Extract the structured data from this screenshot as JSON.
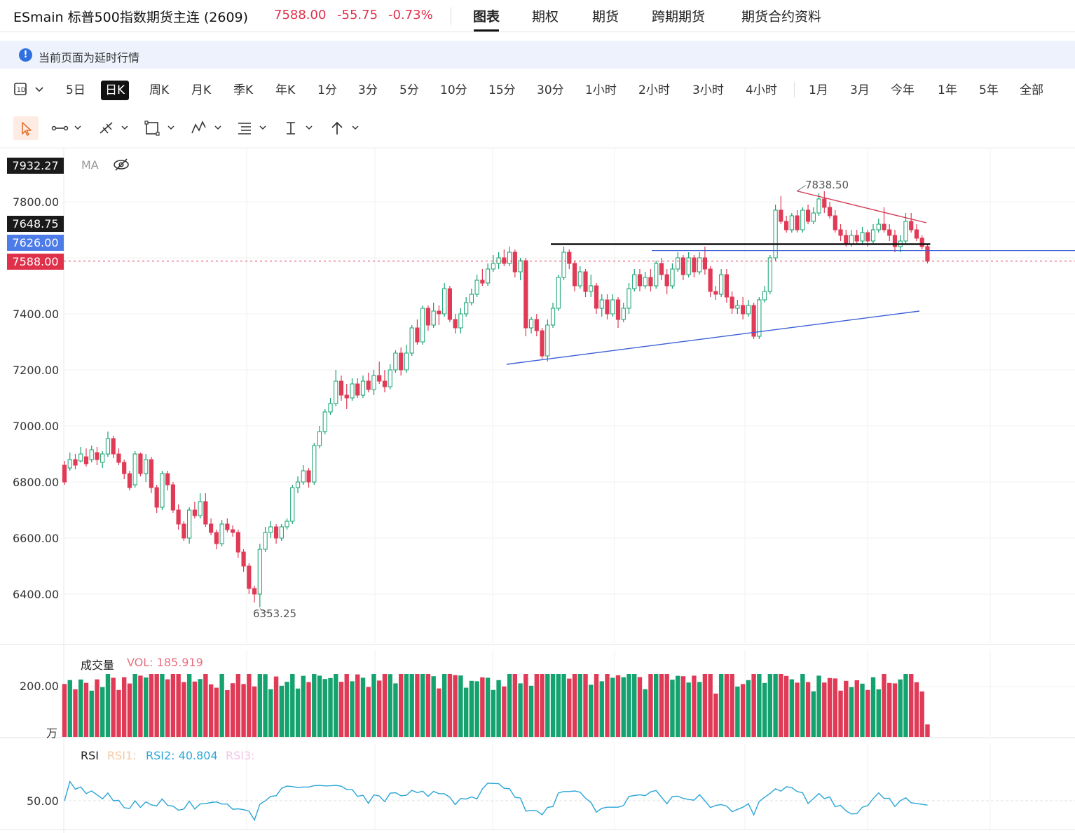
{
  "header": {
    "title": "ESmain 标普500指数期货主连 (2609)",
    "price": "7588.00",
    "change": "-55.75",
    "change_pct": "-0.73%",
    "tabs": [
      {
        "label": "图表",
        "active": true
      },
      {
        "label": "期权",
        "active": false
      },
      {
        "label": "期货",
        "active": false
      },
      {
        "label": "跨期期货",
        "active": false
      },
      {
        "label": "期货合约资料",
        "active": false
      }
    ]
  },
  "notice": {
    "text": "当前页面为延时行情"
  },
  "periods": {
    "items": [
      "5日",
      "日K",
      "周K",
      "月K",
      "季K",
      "年K",
      "1分",
      "3分",
      "5分",
      "10分",
      "15分",
      "30分",
      "1小时",
      "2小时",
      "3小时",
      "4小时"
    ],
    "active": "日K",
    "ranges": [
      "1月",
      "3月",
      "今年",
      "1年",
      "5年",
      "全部"
    ]
  },
  "colors": {
    "up": "#14a26f",
    "down": "#e03a56",
    "resistance": "#d23b55",
    "support": "#3c5fd6",
    "neckline": "#111111",
    "rsi": "#2aa6d6",
    "last_price_badge": "#e0314b",
    "ref_badge": "#4d7be8",
    "hover_badge": "#1a1a1a"
  },
  "price_chart": {
    "indicator_label": "MA",
    "hover_value": "7932.27",
    "y_ticks": [
      "7800.00",
      "7400.00",
      "7200.00",
      "7000.00",
      "6800.00",
      "6600.00",
      "6400.00"
    ],
    "badges": {
      "neckline": "7648.75",
      "reference": "7626.00",
      "last": "7588.00"
    },
    "high_label": "7838.50",
    "low_label": "6353.25",
    "candles": [
      [
        6860,
        6800,
        6875,
        6790
      ],
      [
        6850,
        6880,
        6905,
        6840
      ],
      [
        6880,
        6860,
        6900,
        6845
      ],
      [
        6875,
        6900,
        6925,
        6870
      ],
      [
        6890,
        6865,
        6920,
        6855
      ],
      [
        6880,
        6915,
        6930,
        6870
      ],
      [
        6905,
        6880,
        6925,
        6860
      ],
      [
        6870,
        6900,
        6910,
        6850
      ],
      [
        6900,
        6955,
        6980,
        6890
      ],
      [
        6955,
        6900,
        6965,
        6885
      ],
      [
        6900,
        6870,
        6920,
        6860
      ],
      [
        6870,
        6830,
        6880,
        6810
      ],
      [
        6830,
        6780,
        6840,
        6770
      ],
      [
        6790,
        6900,
        6910,
        6780
      ],
      [
        6900,
        6830,
        6905,
        6820
      ],
      [
        6830,
        6880,
        6900,
        6800
      ],
      [
        6880,
        6780,
        6890,
        6760
      ],
      [
        6780,
        6710,
        6790,
        6690
      ],
      [
        6710,
        6830,
        6840,
        6700
      ],
      [
        6830,
        6790,
        6840,
        6770
      ],
      [
        6790,
        6700,
        6800,
        6690
      ],
      [
        6700,
        6650,
        6720,
        6630
      ],
      [
        6650,
        6600,
        6660,
        6590
      ],
      [
        6600,
        6700,
        6710,
        6580
      ],
      [
        6700,
        6680,
        6730,
        6670
      ],
      [
        6680,
        6730,
        6760,
        6670
      ],
      [
        6730,
        6650,
        6760,
        6640
      ],
      [
        6650,
        6620,
        6670,
        6610
      ],
      [
        6620,
        6580,
        6630,
        6560
      ],
      [
        6580,
        6650,
        6665,
        6570
      ],
      [
        6650,
        6630,
        6670,
        6620
      ],
      [
        6630,
        6620,
        6645,
        6605
      ],
      [
        6620,
        6550,
        6630,
        6530
      ],
      [
        6550,
        6500,
        6560,
        6480
      ],
      [
        6500,
        6420,
        6510,
        6400
      ],
      [
        6420,
        6400,
        6430,
        6370
      ],
      [
        6400,
        6560,
        6580,
        6353
      ],
      [
        6560,
        6620,
        6640,
        6550
      ],
      [
        6620,
        6640,
        6660,
        6600
      ],
      [
        6640,
        6600,
        6650,
        6580
      ],
      [
        6600,
        6640,
        6650,
        6590
      ],
      [
        6640,
        6660,
        6670,
        6630
      ],
      [
        6660,
        6780,
        6790,
        6650
      ],
      [
        6780,
        6800,
        6820,
        6760
      ],
      [
        6800,
        6840,
        6860,
        6790
      ],
      [
        6840,
        6800,
        6850,
        6780
      ],
      [
        6800,
        6930,
        6940,
        6790
      ],
      [
        6930,
        6980,
        7000,
        6920
      ],
      [
        6980,
        7050,
        7060,
        6970
      ],
      [
        7050,
        7080,
        7100,
        7040
      ],
      [
        7080,
        7160,
        7200,
        7070
      ],
      [
        7160,
        7110,
        7180,
        7090
      ],
      [
        7110,
        7100,
        7150,
        7060
      ],
      [
        7100,
        7150,
        7170,
        7090
      ],
      [
        7150,
        7110,
        7170,
        7100
      ],
      [
        7110,
        7160,
        7180,
        7100
      ],
      [
        7160,
        7130,
        7190,
        7120
      ],
      [
        7130,
        7180,
        7200,
        7110
      ],
      [
        7180,
        7160,
        7230,
        7150
      ],
      [
        7160,
        7140,
        7200,
        7120
      ],
      [
        7140,
        7200,
        7220,
        7130
      ],
      [
        7200,
        7260,
        7270,
        7190
      ],
      [
        7260,
        7200,
        7280,
        7180
      ],
      [
        7200,
        7260,
        7290,
        7190
      ],
      [
        7260,
        7350,
        7360,
        7250
      ],
      [
        7350,
        7300,
        7380,
        7290
      ],
      [
        7300,
        7420,
        7430,
        7290
      ],
      [
        7420,
        7360,
        7430,
        7340
      ],
      [
        7360,
        7410,
        7440,
        7350
      ],
      [
        7410,
        7400,
        7430,
        7360
      ],
      [
        7400,
        7490,
        7510,
        7390
      ],
      [
        7490,
        7380,
        7500,
        7370
      ],
      [
        7380,
        7350,
        7400,
        7330
      ],
      [
        7350,
        7400,
        7420,
        7330
      ],
      [
        7400,
        7440,
        7460,
        7390
      ],
      [
        7440,
        7470,
        7490,
        7430
      ],
      [
        7470,
        7520,
        7540,
        7460
      ],
      [
        7520,
        7510,
        7560,
        7500
      ],
      [
        7510,
        7560,
        7580,
        7500
      ],
      [
        7560,
        7580,
        7610,
        7550
      ],
      [
        7580,
        7600,
        7620,
        7560
      ],
      [
        7600,
        7580,
        7630,
        7570
      ],
      [
        7580,
        7620,
        7640,
        7570
      ],
      [
        7620,
        7550,
        7630,
        7530
      ],
      [
        7550,
        7590,
        7600,
        7520
      ],
      [
        7590,
        7350,
        7600,
        7320
      ],
      [
        7350,
        7380,
        7390,
        7330
      ],
      [
        7380,
        7340,
        7400,
        7320
      ],
      [
        7340,
        7250,
        7350,
        7240
      ],
      [
        7250,
        7360,
        7380,
        7230
      ],
      [
        7360,
        7420,
        7440,
        7350
      ],
      [
        7420,
        7530,
        7540,
        7410
      ],
      [
        7530,
        7620,
        7640,
        7520
      ],
      [
        7620,
        7580,
        7630,
        7560
      ],
      [
        7580,
        7500,
        7590,
        7480
      ],
      [
        7500,
        7550,
        7570,
        7490
      ],
      [
        7550,
        7480,
        7560,
        7460
      ],
      [
        7480,
        7500,
        7540,
        7460
      ],
      [
        7500,
        7420,
        7510,
        7400
      ],
      [
        7420,
        7450,
        7470,
        7390
      ],
      [
        7450,
        7400,
        7470,
        7380
      ],
      [
        7400,
        7450,
        7470,
        7390
      ],
      [
        7450,
        7380,
        7460,
        7350
      ],
      [
        7380,
        7420,
        7440,
        7370
      ],
      [
        7420,
        7490,
        7510,
        7400
      ],
      [
        7490,
        7540,
        7560,
        7480
      ],
      [
        7540,
        7500,
        7560,
        7480
      ],
      [
        7500,
        7530,
        7550,
        7490
      ],
      [
        7530,
        7500,
        7560,
        7480
      ],
      [
        7500,
        7580,
        7590,
        7490
      ],
      [
        7580,
        7540,
        7600,
        7520
      ],
      [
        7540,
        7500,
        7560,
        7470
      ],
      [
        7500,
        7560,
        7580,
        7490
      ],
      [
        7560,
        7600,
        7620,
        7550
      ],
      [
        7600,
        7540,
        7610,
        7520
      ],
      [
        7540,
        7600,
        7620,
        7530
      ],
      [
        7600,
        7550,
        7610,
        7530
      ],
      [
        7550,
        7600,
        7620,
        7540
      ],
      [
        7600,
        7560,
        7640,
        7540
      ],
      [
        7560,
        7480,
        7570,
        7460
      ],
      [
        7480,
        7470,
        7500,
        7450
      ],
      [
        7470,
        7540,
        7560,
        7460
      ],
      [
        7540,
        7460,
        7560,
        7440
      ],
      [
        7460,
        7420,
        7480,
        7400
      ],
      [
        7420,
        7430,
        7450,
        7400
      ],
      [
        7430,
        7400,
        7460,
        7380
      ],
      [
        7400,
        7430,
        7450,
        7390
      ],
      [
        7430,
        7320,
        7440,
        7310
      ],
      [
        7320,
        7450,
        7460,
        7310
      ],
      [
        7450,
        7480,
        7500,
        7440
      ],
      [
        7480,
        7600,
        7610,
        7470
      ],
      [
        7600,
        7770,
        7790,
        7590
      ],
      [
        7770,
        7730,
        7820,
        7720
      ],
      [
        7730,
        7700,
        7750,
        7690
      ],
      [
        7700,
        7750,
        7760,
        7690
      ],
      [
        7750,
        7700,
        7770,
        7690
      ],
      [
        7700,
        7770,
        7780,
        7690
      ],
      [
        7770,
        7730,
        7790,
        7720
      ],
      [
        7730,
        7760,
        7780,
        7720
      ],
      [
        7760,
        7810,
        7830,
        7750
      ],
      [
        7810,
        7780,
        7838,
        7760
      ],
      [
        7780,
        7750,
        7800,
        7740
      ],
      [
        7750,
        7700,
        7770,
        7690
      ],
      [
        7700,
        7680,
        7720,
        7660
      ],
      [
        7680,
        7650,
        7700,
        7640
      ],
      [
        7650,
        7680,
        7700,
        7640
      ],
      [
        7680,
        7660,
        7700,
        7650
      ],
      [
        7660,
        7690,
        7710,
        7650
      ],
      [
        7690,
        7660,
        7700,
        7640
      ],
      [
        7660,
        7700,
        7720,
        7650
      ],
      [
        7700,
        7720,
        7740,
        7690
      ],
      [
        7720,
        7700,
        7780,
        7690
      ],
      [
        7700,
        7680,
        7720,
        7660
      ],
      [
        7680,
        7640,
        7700,
        7620
      ],
      [
        7640,
        7660,
        7680,
        7620
      ],
      [
        7660,
        7730,
        7760,
        7650
      ],
      [
        7730,
        7700,
        7760,
        7690
      ],
      [
        7700,
        7670,
        7720,
        7660
      ],
      [
        7670,
        7640,
        7680,
        7630
      ],
      [
        7640,
        7588,
        7650,
        7580
      ]
    ]
  },
  "volume_chart": {
    "title": "成交量",
    "value_label": "VOL: 185.919",
    "y_tick": "200.00",
    "unit": "万"
  },
  "rsi_chart": {
    "title": "RSI",
    "rsi1": "RSI1:",
    "rsi2": "RSI2: 40.804",
    "rsi3": "RSI3:",
    "y_tick": "50.00"
  }
}
